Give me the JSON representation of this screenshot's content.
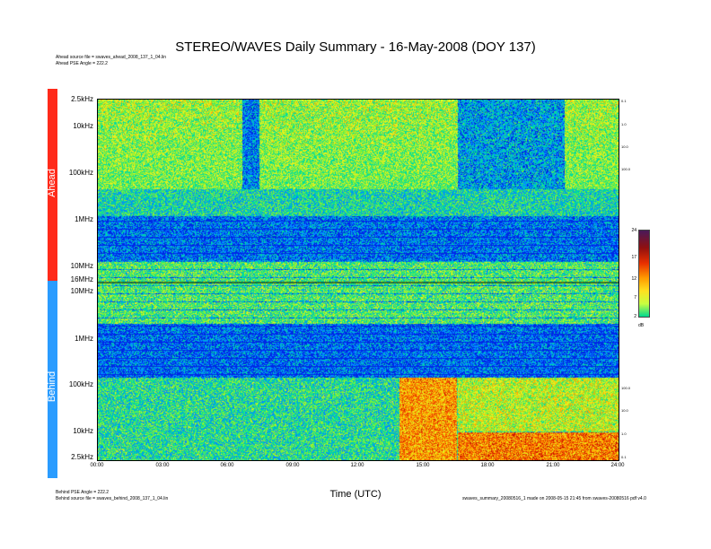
{
  "chart_data": {
    "type": "heatmap",
    "title": "STEREO/WAVES Daily Summary - 16-May-2008 (DOY 137)",
    "xlabel": "Time (UTC)",
    "x_ticks": [
      "00:00",
      "03:00",
      "06:00",
      "09:00",
      "12:00",
      "15:00",
      "18:00",
      "21:00",
      "24:00"
    ],
    "panels": [
      {
        "name": "Ahead",
        "y_ticks": [
          "2.5kHz",
          "10kHz",
          "100kHz",
          "1MHz",
          "10MHz",
          "16MHz"
        ],
        "source_text": "Ahead source file = swaves_ahead_2008_137_1_04.lin",
        "angle_text": "Ahead PSE Angle = 222.2",
        "right_ticks": [
          "0.1",
          "1.0",
          "10.0",
          "100.0"
        ]
      },
      {
        "name": "Behind",
        "y_ticks": [
          "16MHz",
          "10MHz",
          "1MHz",
          "100kHz",
          "10kHz",
          "2.5kHz"
        ],
        "source_text": "Behind source file = swaves_behind_2008_137_1_04.lin",
        "angle_text": "Behind PSE Angle = 222.2",
        "right_ticks": [
          "100.0",
          "10.0",
          "1.0",
          "0.1"
        ]
      }
    ],
    "colorbar": {
      "unit": "dB",
      "ticks": [
        "24",
        "17",
        "12",
        "7",
        "2"
      ],
      "range": [
        2,
        24
      ]
    },
    "footer_text": "swaves_summary_20080516_1 made on 2008-05-15 21:45 from swaves-20080516 pdf v4.0"
  },
  "colors": {
    "ahead": "#ff2a1a",
    "behind": "#2a9cff"
  }
}
